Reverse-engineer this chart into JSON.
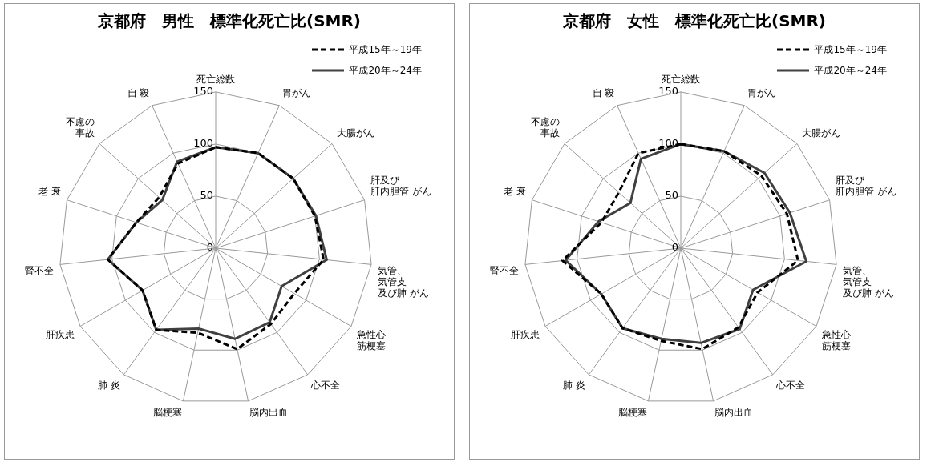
{
  "chart_data": [
    {
      "type": "radar",
      "title": "京都府　男性　標準化死亡比(SMR)",
      "categories": [
        "死亡総数",
        "胃がん",
        "大腸がん",
        "肝及び肝内胆管 がん",
        "気管、気管支及び肺 がん",
        "急性心筋梗塞",
        "心不全",
        "脳内出血",
        "脳梗塞",
        "肺 炎",
        "肝疾患",
        "腎不全",
        "老 衰",
        "不慮の事故",
        "自 殺"
      ],
      "series": [
        {
          "name": "平成15年～19年",
          "color": "#000000",
          "line_style": "dashed",
          "values": [
            97,
            100,
            100,
            100,
            104,
            87,
            90,
            99,
            83,
            97,
            81,
            104,
            80,
            73,
            89
          ]
        },
        {
          "name": "平成20年～24年",
          "color": "#404040",
          "line_style": "solid",
          "values": [
            97,
            100,
            100,
            101,
            107,
            73,
            88,
            89,
            79,
            97,
            81,
            104,
            80,
            69,
            91
          ]
        }
      ],
      "ylim": [
        0,
        150
      ],
      "yticks": [
        0,
        50,
        100,
        150
      ],
      "grid": true,
      "legend": "top right",
      "marker": "none"
    },
    {
      "type": "radar",
      "title": "京都府　女性　標準化死亡比(SMR)",
      "categories": [
        "死亡総数",
        "胃がん",
        "大腸がん",
        "肝及び肝内胆管 がん",
        "気管、気管支及び肺 がん",
        "急性心筋梗塞",
        "心不全",
        "脳内出血",
        "脳梗塞",
        "肺 炎",
        "肝疾患",
        "腎不全",
        "老 衰",
        "不慮の事故",
        "自 殺"
      ],
      "series": [
        {
          "name": "平成15年～19年",
          "color": "#000000",
          "line_style": "dashed",
          "values": [
            100,
            102,
            104,
            107,
            113,
            85,
            94,
            99,
            91,
            95,
            88,
            114,
            80,
            80,
            100
          ]
        },
        {
          "name": "平成20年～24年",
          "color": "#404040",
          "line_style": "solid",
          "values": [
            100,
            102,
            108,
            110,
            121,
            80,
            96,
            93,
            89,
            95,
            88,
            111,
            83,
            65,
            94
          ]
        }
      ],
      "ylim": [
        0,
        150
      ],
      "yticks": [
        0,
        50,
        100,
        150
      ],
      "grid": true,
      "legend": "top right",
      "marker": "none"
    }
  ]
}
